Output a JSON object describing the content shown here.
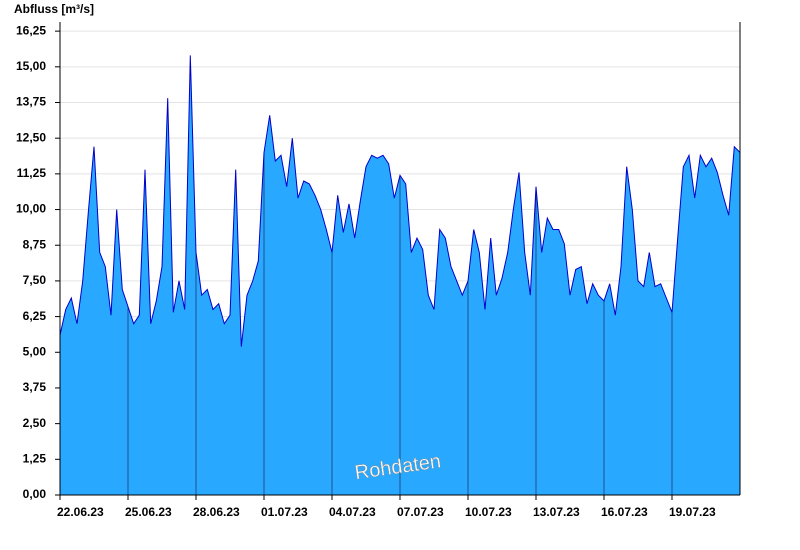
{
  "chart_data": {
    "type": "area",
    "y_axis_label": "Abfluss [m³/s]",
    "annotation": "Rohdaten",
    "x": [
      "2023-06-22T00:00",
      "2023-06-22T06:00",
      "2023-06-22T12:00",
      "2023-06-22T18:00",
      "2023-06-23T00:00",
      "2023-06-23T06:00",
      "2023-06-23T12:00",
      "2023-06-23T18:00",
      "2023-06-24T00:00",
      "2023-06-24T06:00",
      "2023-06-24T12:00",
      "2023-06-24T18:00",
      "2023-06-25T00:00",
      "2023-06-25T06:00",
      "2023-06-25T12:00",
      "2023-06-25T18:00",
      "2023-06-26T00:00",
      "2023-06-26T06:00",
      "2023-06-26T12:00",
      "2023-06-26T18:00",
      "2023-06-27T00:00",
      "2023-06-27T06:00",
      "2023-06-27T12:00",
      "2023-06-27T18:00",
      "2023-06-28T00:00",
      "2023-06-28T06:00",
      "2023-06-28T12:00",
      "2023-06-28T18:00",
      "2023-06-29T00:00",
      "2023-06-29T06:00",
      "2023-06-29T12:00",
      "2023-06-29T18:00",
      "2023-06-30T00:00",
      "2023-06-30T06:00",
      "2023-06-30T12:00",
      "2023-06-30T18:00",
      "2023-07-01T00:00",
      "2023-07-01T06:00",
      "2023-07-01T12:00",
      "2023-07-01T18:00",
      "2023-07-02T00:00",
      "2023-07-02T06:00",
      "2023-07-02T12:00",
      "2023-07-02T18:00",
      "2023-07-03T00:00",
      "2023-07-03T06:00",
      "2023-07-03T12:00",
      "2023-07-03T18:00",
      "2023-07-04T00:00",
      "2023-07-04T06:00",
      "2023-07-04T12:00",
      "2023-07-04T18:00",
      "2023-07-05T00:00",
      "2023-07-05T06:00",
      "2023-07-05T12:00",
      "2023-07-05T18:00",
      "2023-07-06T00:00",
      "2023-07-06T06:00",
      "2023-07-06T12:00",
      "2023-07-06T18:00",
      "2023-07-07T00:00",
      "2023-07-07T06:00",
      "2023-07-07T12:00",
      "2023-07-07T18:00",
      "2023-07-08T00:00",
      "2023-07-08T06:00",
      "2023-07-08T12:00",
      "2023-07-08T18:00",
      "2023-07-09T00:00",
      "2023-07-09T06:00",
      "2023-07-09T12:00",
      "2023-07-09T18:00",
      "2023-07-10T00:00",
      "2023-07-10T06:00",
      "2023-07-10T12:00",
      "2023-07-10T18:00",
      "2023-07-11T00:00",
      "2023-07-11T06:00",
      "2023-07-11T12:00",
      "2023-07-11T18:00",
      "2023-07-12T00:00",
      "2023-07-12T06:00",
      "2023-07-12T12:00",
      "2023-07-12T18:00",
      "2023-07-13T00:00",
      "2023-07-13T06:00",
      "2023-07-13T12:00",
      "2023-07-13T18:00",
      "2023-07-14T00:00",
      "2023-07-14T06:00",
      "2023-07-14T12:00",
      "2023-07-14T18:00",
      "2023-07-15T00:00",
      "2023-07-15T06:00",
      "2023-07-15T12:00",
      "2023-07-15T18:00",
      "2023-07-16T00:00",
      "2023-07-16T06:00",
      "2023-07-16T12:00",
      "2023-07-16T18:00",
      "2023-07-17T00:00",
      "2023-07-17T06:00",
      "2023-07-17T12:00",
      "2023-07-17T18:00",
      "2023-07-18T00:00",
      "2023-07-18T06:00",
      "2023-07-18T12:00",
      "2023-07-18T18:00",
      "2023-07-19T00:00",
      "2023-07-19T06:00",
      "2023-07-19T12:00",
      "2023-07-19T18:00",
      "2023-07-20T00:00",
      "2023-07-20T06:00",
      "2023-07-20T12:00",
      "2023-07-20T18:00",
      "2023-07-21T00:00",
      "2023-07-21T06:00",
      "2023-07-21T12:00",
      "2023-07-21T18:00",
      "2023-07-22T00:00"
    ],
    "values": [
      5.6,
      6.5,
      6.9,
      6.0,
      7.5,
      9.9,
      12.2,
      8.5,
      8.0,
      6.3,
      10.0,
      7.2,
      6.6,
      6.0,
      6.3,
      11.4,
      6.0,
      6.8,
      8.0,
      13.9,
      6.4,
      7.5,
      6.5,
      15.4,
      8.5,
      7.0,
      7.2,
      6.5,
      6.7,
      6.0,
      6.3,
      11.4,
      5.2,
      7.0,
      7.5,
      8.2,
      12.0,
      13.3,
      11.7,
      11.9,
      10.8,
      12.5,
      10.4,
      11.0,
      10.9,
      10.5,
      10.0,
      9.3,
      8.5,
      10.5,
      9.2,
      10.2,
      9.0,
      10.3,
      11.5,
      11.9,
      11.8,
      11.9,
      11.6,
      10.4,
      11.2,
      10.9,
      8.5,
      9.0,
      8.6,
      7.0,
      6.5,
      9.3,
      9.0,
      8.0,
      7.5,
      7.0,
      7.5,
      9.3,
      8.5,
      6.5,
      9.0,
      7.0,
      7.6,
      8.5,
      10.0,
      11.3,
      8.5,
      7.0,
      10.8,
      8.5,
      9.7,
      9.3,
      9.3,
      8.8,
      7.0,
      7.9,
      8.0,
      6.7,
      7.4,
      7.0,
      6.8,
      7.4,
      6.3,
      8.0,
      11.5,
      10.0,
      7.5,
      7.3,
      8.5,
      7.3,
      7.4,
      6.9,
      6.4,
      9.0,
      11.5,
      11.9,
      10.4,
      11.9,
      11.5,
      11.8,
      11.3,
      10.5,
      9.8,
      12.2,
      12.0
    ],
    "fill_color": "#29a8ff",
    "line_color": "#0000cc",
    "xlim": [
      "2023-06-22T00:00",
      "2023-07-22T00:00"
    ],
    "xticks": [
      {
        "value": "2023-06-22T00:00",
        "label": "22.06.23"
      },
      {
        "value": "2023-06-25T00:00",
        "label": "25.06.23"
      },
      {
        "value": "2023-06-28T00:00",
        "label": "28.06.23"
      },
      {
        "value": "2023-07-01T00:00",
        "label": "01.07.23"
      },
      {
        "value": "2023-07-04T00:00",
        "label": "04.07.23"
      },
      {
        "value": "2023-07-07T00:00",
        "label": "07.07.23"
      },
      {
        "value": "2023-07-10T00:00",
        "label": "10.07.23"
      },
      {
        "value": "2023-07-13T00:00",
        "label": "13.07.23"
      },
      {
        "value": "2023-07-16T00:00",
        "label": "16.07.23"
      },
      {
        "value": "2023-07-19T00:00",
        "label": "19.07.23"
      }
    ],
    "ylim": [
      0,
      16.57
    ],
    "yticks": [
      {
        "value": 0,
        "label": "0,00"
      },
      {
        "value": 1.25,
        "label": "1,25"
      },
      {
        "value": 2.5,
        "label": "2,50"
      },
      {
        "value": 3.75,
        "label": "3,75"
      },
      {
        "value": 5,
        "label": "5,00"
      },
      {
        "value": 6.25,
        "label": "6,25"
      },
      {
        "value": 7.5,
        "label": "7,50"
      },
      {
        "value": 8.75,
        "label": "8,75"
      },
      {
        "value": 10,
        "label": "10,00"
      },
      {
        "value": 11.25,
        "label": "11,25"
      },
      {
        "value": 12.5,
        "label": "12,50"
      },
      {
        "value": 13.75,
        "label": "13,75"
      },
      {
        "value": 15,
        "label": "15,00"
      },
      {
        "value": 16.25,
        "label": "16,25"
      }
    ],
    "grid": true
  }
}
